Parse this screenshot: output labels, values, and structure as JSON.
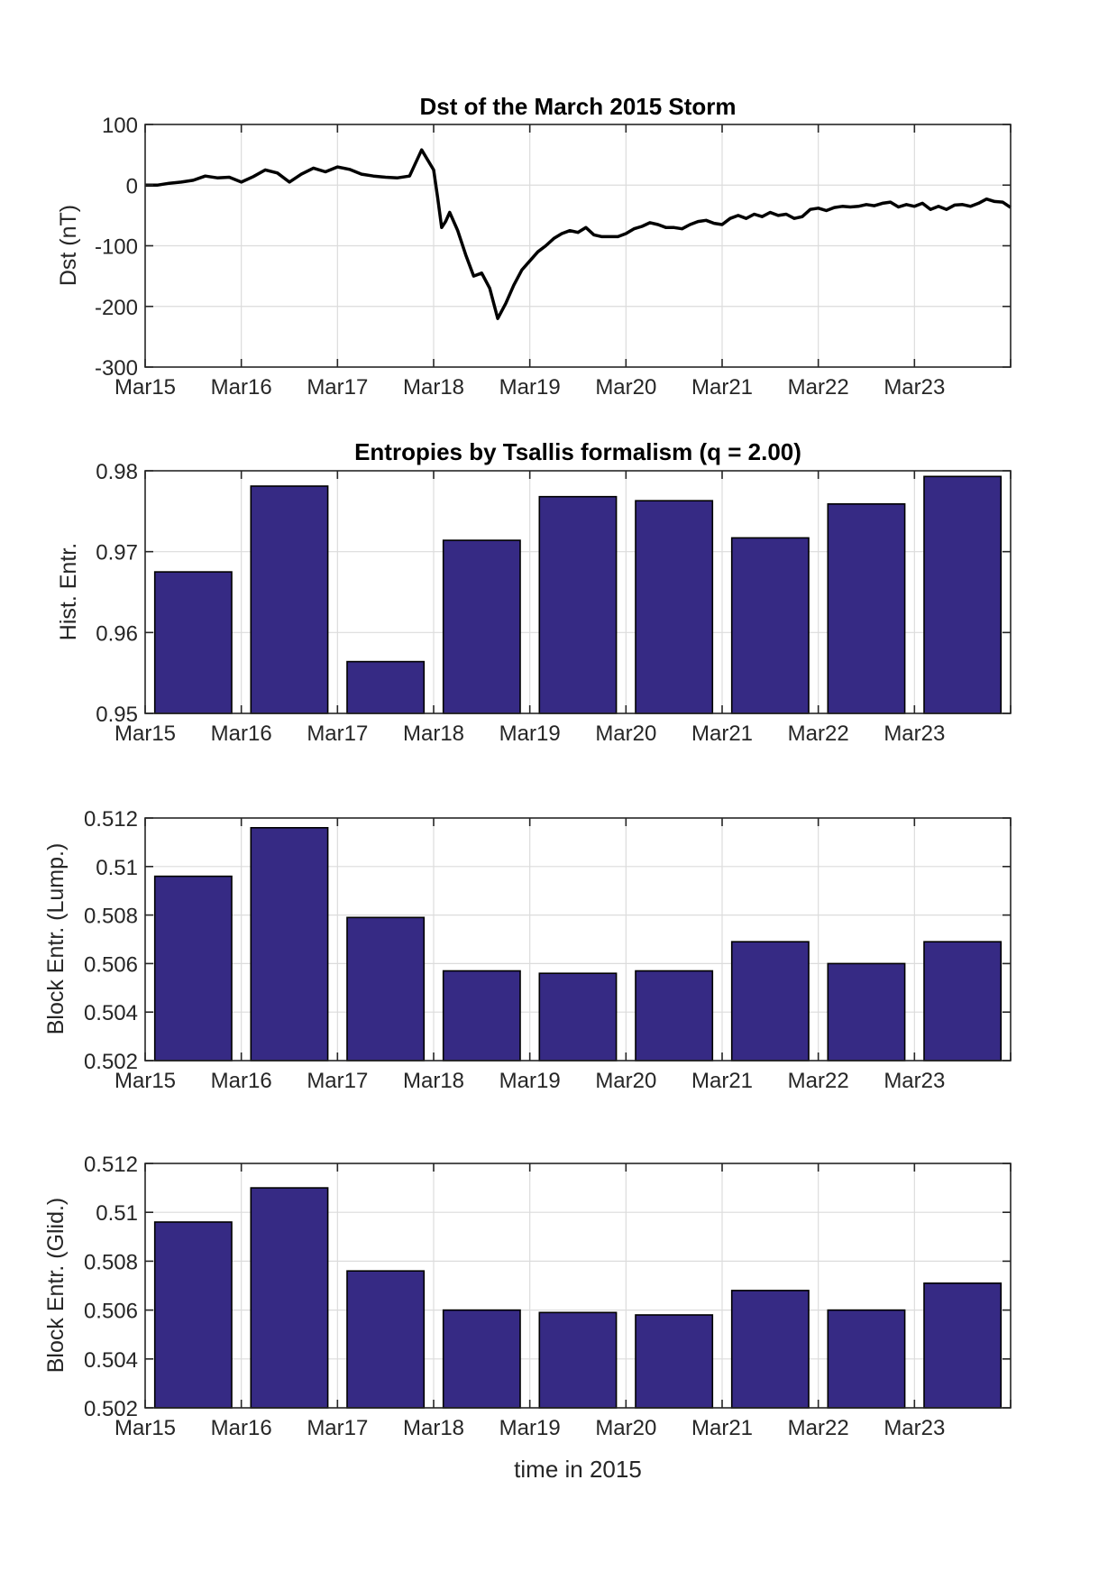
{
  "chart_data": [
    {
      "type": "line",
      "title": "Dst of the March 2015 Storm",
      "xlabel": "",
      "ylabel": "Dst (nT)",
      "xlim_days": [
        0,
        9
      ],
      "ylim": [
        -300,
        100
      ],
      "yticks": [
        100,
        0,
        -100,
        -200,
        -300
      ],
      "xtick_labels": [
        "Mar15",
        "Mar16",
        "Mar17",
        "Mar18",
        "Mar19",
        "Mar20",
        "Mar21",
        "Mar22",
        "Mar23"
      ],
      "grid": true,
      "line_color": "#000000",
      "series": [
        {
          "name": "Dst",
          "x_hours": [
            0,
            3,
            6,
            9,
            12,
            15,
            18,
            21,
            24,
            27,
            30,
            33,
            36,
            39,
            42,
            45,
            48,
            51,
            54,
            57,
            60,
            63,
            66,
            69,
            72,
            73,
            74,
            75,
            76,
            78,
            80,
            82,
            84,
            86,
            88,
            90,
            92,
            94,
            96,
            98,
            100,
            102,
            104,
            106,
            108,
            110,
            112,
            114,
            116,
            118,
            120,
            122,
            124,
            126,
            128,
            130,
            132,
            134,
            136,
            138,
            140,
            142,
            144,
            146,
            148,
            150,
            152,
            154,
            156,
            158,
            160,
            162,
            164,
            166,
            168,
            170,
            172,
            174,
            176,
            178,
            180,
            182,
            184,
            186,
            188,
            190,
            192,
            194,
            196,
            198,
            200,
            202,
            204,
            206,
            208,
            210,
            212,
            214,
            216
          ],
          "y": [
            0,
            0,
            3,
            5,
            8,
            15,
            12,
            13,
            5,
            14,
            25,
            20,
            5,
            18,
            28,
            22,
            30,
            26,
            18,
            15,
            13,
            12,
            15,
            58,
            25,
            -20,
            -70,
            -60,
            -45,
            -75,
            -115,
            -150,
            -145,
            -170,
            -220,
            -195,
            -165,
            -140,
            -125,
            -110,
            -100,
            -88,
            -80,
            -75,
            -78,
            -70,
            -82,
            -85,
            -85,
            -85,
            -80,
            -72,
            -68,
            -62,
            -65,
            -70,
            -70,
            -72,
            -65,
            -60,
            -58,
            -63,
            -65,
            -55,
            -50,
            -55,
            -48,
            -52,
            -45,
            -50,
            -48,
            -55,
            -52,
            -40,
            -38,
            -42,
            -37,
            -35,
            -36,
            -35,
            -32,
            -34,
            -30,
            -28,
            -36,
            -32,
            -35,
            -30,
            -40,
            -35,
            -40,
            -33,
            -32,
            -35,
            -30,
            -23,
            -27,
            -28,
            -37
          ]
        }
      ]
    },
    {
      "type": "bar",
      "title": "Entropies by Tsallis formalism (q = 2.00)",
      "xlabel": "",
      "ylabel": "Hist. Entr.",
      "categories": [
        "Mar15",
        "Mar16",
        "Mar17",
        "Mar18",
        "Mar19",
        "Mar20",
        "Mar21",
        "Mar22",
        "Mar23"
      ],
      "values": [
        0.9675,
        0.9781,
        0.9564,
        0.9714,
        0.9768,
        0.9763,
        0.9717,
        0.9759,
        0.9793
      ],
      "ylim": [
        0.95,
        0.98
      ],
      "yticks": [
        0.98,
        0.97,
        0.96,
        0.95
      ],
      "ytick_labels": [
        "0.98",
        "0.97",
        "0.96",
        "0.95"
      ],
      "grid": true,
      "bar_color": "#362a84"
    },
    {
      "type": "bar",
      "title": "",
      "xlabel": "",
      "ylabel": "Block Entr. (Lump.)",
      "categories": [
        "Mar15",
        "Mar16",
        "Mar17",
        "Mar18",
        "Mar19",
        "Mar20",
        "Mar21",
        "Mar22",
        "Mar23"
      ],
      "values": [
        0.5096,
        0.5116,
        0.5079,
        0.5057,
        0.5056,
        0.5057,
        0.5069,
        0.506,
        0.5069
      ],
      "ylim": [
        0.502,
        0.512
      ],
      "yticks": [
        0.512,
        0.51,
        0.508,
        0.506,
        0.504,
        0.502
      ],
      "ytick_labels": [
        "0.512",
        "0.51",
        "0.508",
        "0.506",
        "0.504",
        "0.502"
      ],
      "grid": true,
      "bar_color": "#362a84"
    },
    {
      "type": "bar",
      "title": "",
      "xlabel": "time in 2015",
      "ylabel": "Block Entr. (Glid.)",
      "categories": [
        "Mar15",
        "Mar16",
        "Mar17",
        "Mar18",
        "Mar19",
        "Mar20",
        "Mar21",
        "Mar22",
        "Mar23"
      ],
      "values": [
        0.5096,
        0.511,
        0.5076,
        0.506,
        0.5059,
        0.5058,
        0.5068,
        0.506,
        0.5071
      ],
      "ylim": [
        0.502,
        0.512
      ],
      "yticks": [
        0.512,
        0.51,
        0.508,
        0.506,
        0.504,
        0.502
      ],
      "ytick_labels": [
        "0.512",
        "0.51",
        "0.508",
        "0.506",
        "0.504",
        "0.502"
      ],
      "grid": true,
      "bar_color": "#362a84"
    }
  ]
}
